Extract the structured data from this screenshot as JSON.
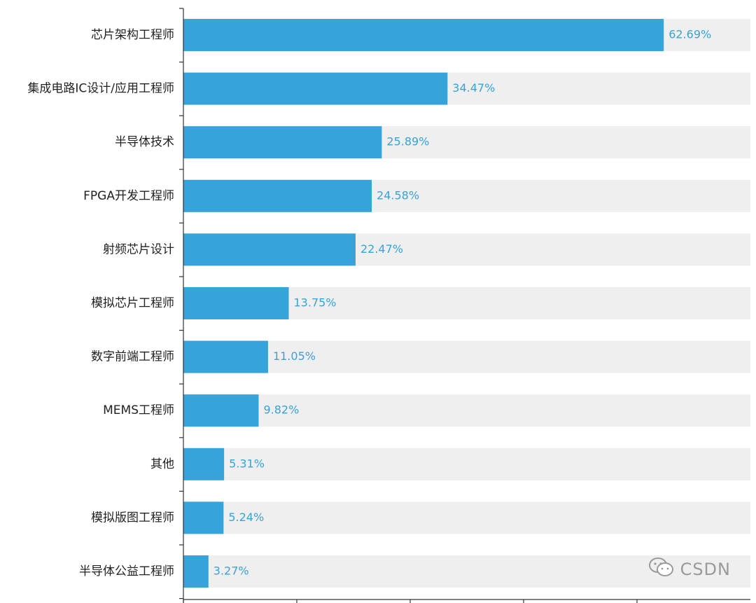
{
  "chart_data": {
    "type": "bar",
    "orientation": "horizontal",
    "categories": [
      "芯片架构工程师",
      "集成电路IC设计/应用工程师",
      "半导体技术",
      "FPGA开发工程师",
      "射频芯片设计",
      "模拟芯片工程师",
      "数字前端工程师",
      "MEMS工程师",
      "其他",
      "模拟版图工程师",
      "半导体公益工程师"
    ],
    "values": [
      62.69,
      34.47,
      25.89,
      24.58,
      22.47,
      13.75,
      11.05,
      9.82,
      5.31,
      5.24,
      3.27
    ],
    "value_labels": [
      "62.69%",
      "34.47%",
      "25.89%",
      "24.58%",
      "22.47%",
      "13.75%",
      "11.05%",
      "9.82%",
      "5.31%",
      "5.24%",
      "3.27%"
    ],
    "xlim": [
      0,
      74
    ],
    "title": "",
    "xlabel": "",
    "ylabel": "",
    "grid": false,
    "legend": "none",
    "colors": {
      "bar": "#36a3db",
      "track": "#efefef",
      "value_text": "#36a3db",
      "axis": "#333333"
    }
  },
  "watermark": {
    "text": "CSDN",
    "icon": "wechat-icon"
  }
}
